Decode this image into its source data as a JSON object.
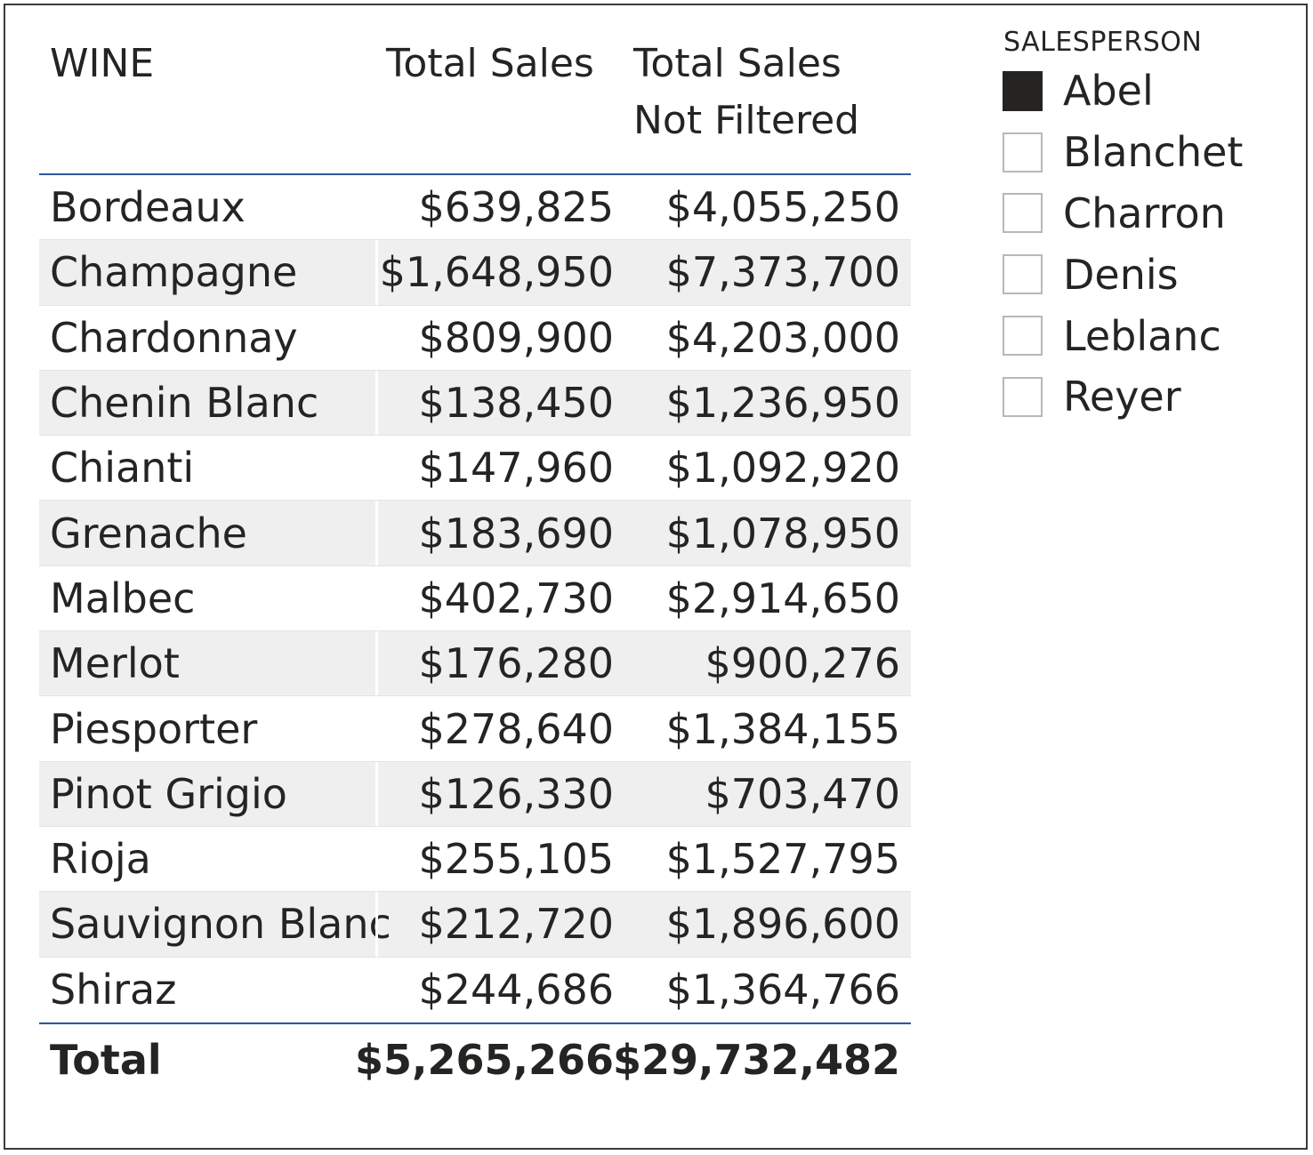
{
  "table": {
    "headers": {
      "wine": "WINE",
      "total_sales": "Total Sales",
      "total_sales_not_filtered": "Total Sales Not Filtered"
    },
    "rows": [
      {
        "wine": "Bordeaux",
        "total_sales": "$639,825",
        "not_filtered": "$4,055,250"
      },
      {
        "wine": "Champagne",
        "total_sales": "$1,648,950",
        "not_filtered": "$7,373,700"
      },
      {
        "wine": "Chardonnay",
        "total_sales": "$809,900",
        "not_filtered": "$4,203,000"
      },
      {
        "wine": "Chenin Blanc",
        "total_sales": "$138,450",
        "not_filtered": "$1,236,950"
      },
      {
        "wine": "Chianti",
        "total_sales": "$147,960",
        "not_filtered": "$1,092,920"
      },
      {
        "wine": "Grenache",
        "total_sales": "$183,690",
        "not_filtered": "$1,078,950"
      },
      {
        "wine": "Malbec",
        "total_sales": "$402,730",
        "not_filtered": "$2,914,650"
      },
      {
        "wine": "Merlot",
        "total_sales": "$176,280",
        "not_filtered": "$900,276"
      },
      {
        "wine": "Piesporter",
        "total_sales": "$278,640",
        "not_filtered": "$1,384,155"
      },
      {
        "wine": "Pinot Grigio",
        "total_sales": "$126,330",
        "not_filtered": "$703,470"
      },
      {
        "wine": "Rioja",
        "total_sales": "$255,105",
        "not_filtered": "$1,527,795"
      },
      {
        "wine": "Sauvignon Blanc",
        "total_sales": "$212,720",
        "not_filtered": "$1,896,600"
      },
      {
        "wine": "Shiraz",
        "total_sales": "$244,686",
        "not_filtered": "$1,364,766"
      }
    ],
    "total": {
      "label": "Total",
      "total_sales": "$5,265,266",
      "not_filtered": "$29,732,482"
    }
  },
  "slicer": {
    "title": "SALESPERSON",
    "items": [
      {
        "label": "Abel",
        "checked": true
      },
      {
        "label": "Blanchet",
        "checked": false
      },
      {
        "label": "Charron",
        "checked": false
      },
      {
        "label": "Denis",
        "checked": false
      },
      {
        "label": "Leblanc",
        "checked": false
      },
      {
        "label": "Reyer",
        "checked": false
      }
    ]
  },
  "colors": {
    "header_rule": "#2e5a9c",
    "row_alt": "#efefef",
    "checked": "#252423"
  }
}
